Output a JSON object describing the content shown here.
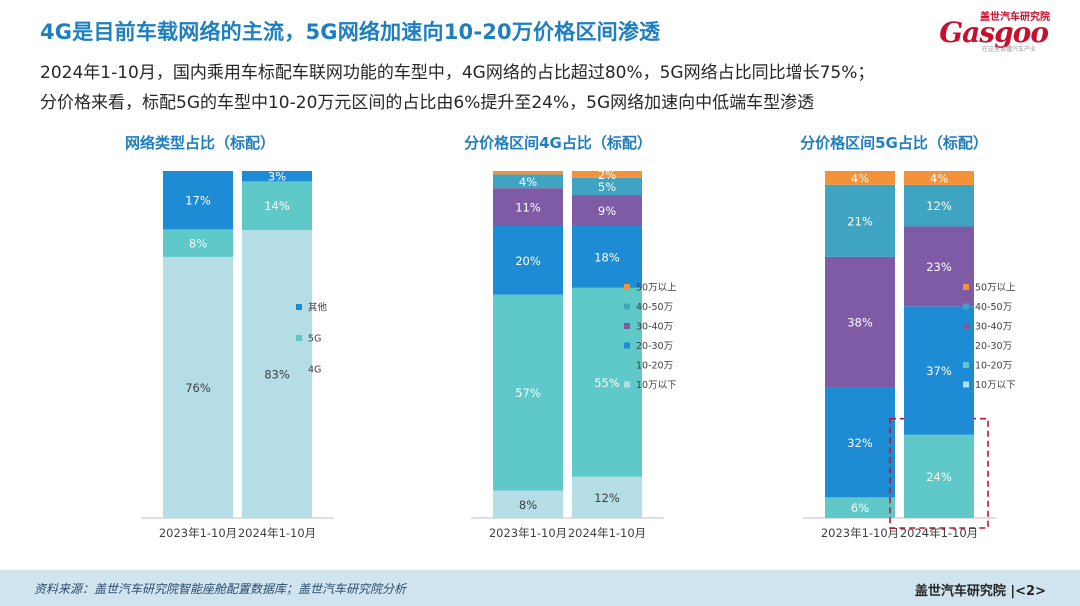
{
  "header": {
    "title": "4G是目前车载网络的主流，5G网络加速向10-20万价格区间渗透",
    "subtitle_lines": [
      "2024年1-10月，国内乘用车标配车联网功能的车型中，4G网络的占比超过80%，5G网络占比同比增长75%；",
      "分价格来看，标配5G的车型中10-20万元区间的占比由6%提升至24%，5G网络加速向中低端车型渗透"
    ]
  },
  "logo": {
    "cn_name": "盖世汽车研究院",
    "en_name": "Gasgoo",
    "tagline": "在这里读懂汽车产业",
    "color": "#c8102e"
  },
  "footer": {
    "source": "资料来源：盖世汽车研究院智能座舱配置数据库；盖世汽车研究院分析",
    "brand": "盖世汽车研究院",
    "page": "|<2>"
  },
  "colors": {
    "title": "#1e7fc0",
    "4G": "#b4dde6",
    "5G": "#5ec9c8",
    "其他": "#1d8cd4",
    "10万以下": "#b4dde6",
    "10-20万": "#5ec9c8",
    "20-30万": "#1d8cd4",
    "30-40万": "#7f5ba6",
    "40-50万": "#3fa3c2",
    "50万以上": "#f4923a",
    "highlight_box": "#c8102e"
  },
  "chart_data": [
    {
      "type": "bar",
      "stacked": true,
      "normalized": true,
      "title": "网络类型占比（标配）",
      "categories": [
        "2023年1-10月",
        "2024年1-10月"
      ],
      "series": [
        {
          "name": "4G",
          "values": [
            76,
            83
          ],
          "labels": [
            "76%",
            "83%"
          ]
        },
        {
          "name": "5G",
          "values": [
            8,
            14
          ],
          "labels": [
            "8%",
            "14%"
          ]
        },
        {
          "name": "其他",
          "values": [
            17,
            3
          ],
          "labels": [
            "17%",
            "3%"
          ]
        }
      ],
      "legend": "right",
      "ylim": [
        0,
        100
      ],
      "grid": false
    },
    {
      "type": "bar",
      "stacked": true,
      "normalized": true,
      "title": "分价格区间4G占比（标配）",
      "categories": [
        "2023年1-10月",
        "2024年1-10月"
      ],
      "series": [
        {
          "name": "10万以下",
          "values": [
            8,
            12
          ],
          "labels": [
            "8%",
            "12%"
          ]
        },
        {
          "name": "10-20万",
          "values": [
            57,
            55
          ],
          "labels": [
            "57%",
            "55%"
          ]
        },
        {
          "name": "20-30万",
          "values": [
            20,
            18
          ],
          "labels": [
            "20%",
            "18%"
          ]
        },
        {
          "name": "30-40万",
          "values": [
            11,
            9
          ],
          "labels": [
            "11%",
            "9%"
          ]
        },
        {
          "name": "40-50万",
          "values": [
            4,
            5
          ],
          "labels": [
            "4%",
            "5%"
          ]
        },
        {
          "name": "50万以上",
          "values": [
            1,
            2
          ],
          "labels": [
            "",
            "2%"
          ]
        }
      ],
      "legend": "right",
      "ylim": [
        0,
        100
      ],
      "grid": false
    },
    {
      "type": "bar",
      "stacked": true,
      "normalized": true,
      "title": "分价格区间5G占比（标配）",
      "categories": [
        "2023年1-10月",
        "2024年1-10月"
      ],
      "series": [
        {
          "name": "10万以下",
          "values": [
            0,
            0
          ],
          "labels": [
            "",
            ""
          ]
        },
        {
          "name": "10-20万",
          "values": [
            6,
            24
          ],
          "labels": [
            "6%",
            "24%"
          ]
        },
        {
          "name": "20-30万",
          "values": [
            32,
            37
          ],
          "labels": [
            "32%",
            "37%"
          ]
        },
        {
          "name": "30-40万",
          "values": [
            38,
            23
          ],
          "labels": [
            "38%",
            "23%"
          ]
        },
        {
          "name": "40-50万",
          "values": [
            21,
            12
          ],
          "labels": [
            "21%",
            "12%"
          ]
        },
        {
          "name": "50万以上",
          "values": [
            4,
            4
          ],
          "labels": [
            "4%",
            "4%"
          ]
        }
      ],
      "legend": "right",
      "ylim": [
        0,
        100
      ],
      "grid": false,
      "highlight": {
        "category": "2024年1-10月",
        "series": "10-20万"
      }
    }
  ]
}
